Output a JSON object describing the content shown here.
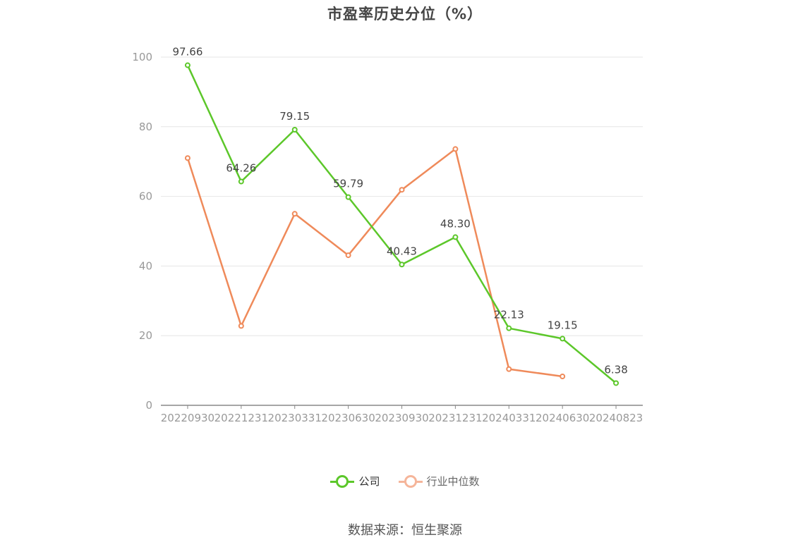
{
  "title": "市盈率历史分位（%）",
  "source": "数据来源：恒生聚源",
  "colors": {
    "company": "#5cc72a",
    "industry": "#ef8a5a",
    "industry_legend": "#f5b59a",
    "axis": "#999999",
    "grid": "#e6e6e6",
    "label": "#444444"
  },
  "legend": {
    "company": "公司",
    "industry": "行业中位数"
  },
  "chart_data": {
    "type": "line",
    "title": "市盈率历史分位（%）",
    "xlabel": "",
    "ylabel": "",
    "ylim": [
      0,
      100
    ],
    "yticks": [
      0,
      20,
      40,
      60,
      80,
      100
    ],
    "grid": true,
    "legend_position": "bottom",
    "categories": [
      "20220930",
      "20221231",
      "20230331",
      "20230630",
      "20230930",
      "20231231",
      "20240331",
      "20240630",
      "20240823"
    ],
    "series": [
      {
        "name": "公司",
        "values": [
          97.66,
          64.26,
          79.15,
          59.79,
          40.43,
          48.3,
          22.13,
          19.15,
          6.38
        ],
        "labels": [
          "97.66",
          "64.26",
          "79.15",
          "59.79",
          "40.43",
          "48.30",
          "22.13",
          "19.15",
          "6.38"
        ]
      },
      {
        "name": "行业中位数",
        "values": [
          71.0,
          22.8,
          55.0,
          43.1,
          61.9,
          73.6,
          10.4,
          8.3,
          null
        ]
      }
    ]
  }
}
